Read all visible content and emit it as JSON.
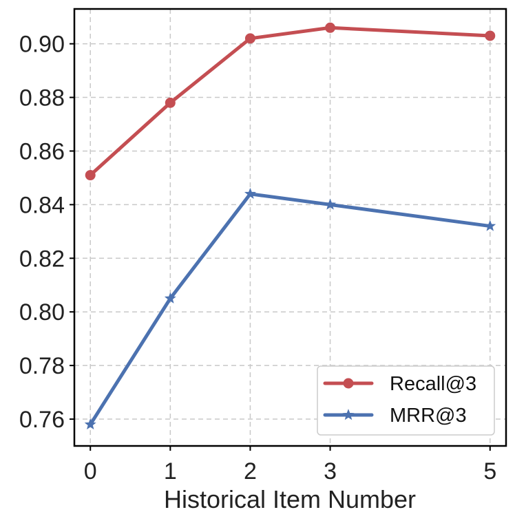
{
  "chart_data": {
    "type": "line",
    "title": "",
    "xlabel": "Historical Item Number",
    "ylabel": "",
    "x": [
      0,
      1,
      2,
      3,
      5
    ],
    "x_tick_labels": [
      "0",
      "1",
      "2",
      "3",
      "5"
    ],
    "ylim": [
      0.75,
      0.913
    ],
    "y_ticks": [
      0.76,
      0.78,
      0.8,
      0.82,
      0.84,
      0.86,
      0.88,
      0.9
    ],
    "y_tick_labels": [
      "0.76",
      "0.78",
      "0.80",
      "0.82",
      "0.84",
      "0.86",
      "0.88",
      "0.90"
    ],
    "grid": true,
    "legend_position": "lower-right",
    "series": [
      {
        "name": "Recall@3",
        "marker": "circle",
        "color": "#c44e52",
        "values": [
          0.851,
          0.878,
          0.902,
          0.906,
          0.903
        ]
      },
      {
        "name": "MRR@3",
        "marker": "star",
        "color": "#4c72b0",
        "values": [
          0.758,
          0.805,
          0.844,
          0.84,
          0.832
        ]
      }
    ]
  }
}
